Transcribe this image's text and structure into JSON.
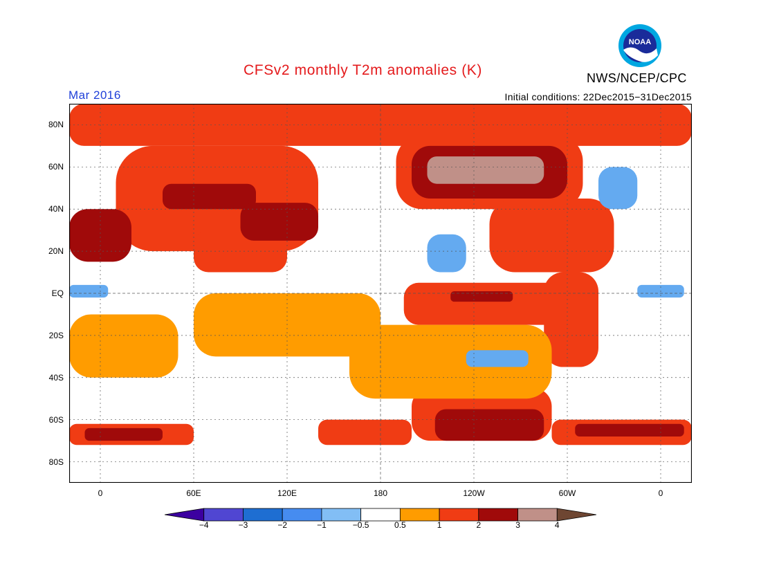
{
  "header": {
    "title": "CFSv2 monthly T2m anomalies (K)",
    "month": "Mar 2016",
    "initial_conditions": "Initial conditions: 22Dec2015−31Dec2015",
    "agency": "NWS/NCEP/CPC",
    "logo_icon": "noaa-logo-icon",
    "logo_text": "NOAA"
  },
  "map": {
    "lon_range": [
      -20,
      380
    ],
    "lat_range": [
      -90,
      90
    ],
    "y_ticks": [
      {
        "label": "80N",
        "lat": 80
      },
      {
        "label": "60N",
        "lat": 60
      },
      {
        "label": "40N",
        "lat": 40
      },
      {
        "label": "20N",
        "lat": 20
      },
      {
        "label": "EQ",
        "lat": 0
      },
      {
        "label": "20S",
        "lat": -20
      },
      {
        "label": "40S",
        "lat": -40
      },
      {
        "label": "60S",
        "lat": -60
      },
      {
        "label": "80S",
        "lat": -80
      }
    ],
    "x_ticks": [
      {
        "label": "0",
        "lon": 0
      },
      {
        "label": "60E",
        "lon": 60
      },
      {
        "label": "120E",
        "lon": 120
      },
      {
        "label": "180",
        "lon": 180
      },
      {
        "label": "120W",
        "lon": 240
      },
      {
        "label": "60W",
        "lon": 300
      },
      {
        "label": "0",
        "lon": 360
      }
    ],
    "grid": true,
    "background_color": "#ffffff",
    "regions": [
      {
        "name": "arctic-warm",
        "color": "#f03c14",
        "cells": [
          [
            -20,
            70,
            400,
            20
          ]
        ]
      },
      {
        "name": "eurasia-warm",
        "color": "#f03c14",
        "cells": [
          [
            10,
            20,
            130,
            50
          ],
          [
            60,
            10,
            60,
            20
          ]
        ]
      },
      {
        "name": "siberia-hot",
        "color": "#a00a0a",
        "cells": [
          [
            40,
            40,
            60,
            12
          ],
          [
            90,
            25,
            50,
            18
          ]
        ]
      },
      {
        "name": "sahara-hot",
        "color": "#a00a0a",
        "cells": [
          [
            -20,
            15,
            40,
            25
          ]
        ]
      },
      {
        "name": "north-america-warm",
        "color": "#f03c14",
        "cells": [
          [
            190,
            40,
            120,
            35
          ],
          [
            250,
            10,
            80,
            35
          ]
        ]
      },
      {
        "name": "canada-hot",
        "color": "#a00a0a",
        "cells": [
          [
            200,
            45,
            100,
            25
          ]
        ]
      },
      {
        "name": "canada-extreme",
        "color": "#c09088",
        "cells": [
          [
            210,
            52,
            75,
            13
          ]
        ]
      },
      {
        "name": "pacific-warm",
        "color": "#f03c14",
        "cells": [
          [
            195,
            -15,
            110,
            20
          ]
        ]
      },
      {
        "name": "equatorial-pacific-hot",
        "color": "#a00a0a",
        "cells": [
          [
            225,
            -4,
            40,
            5
          ]
        ]
      },
      {
        "name": "south-america-warm",
        "color": "#f03c14",
        "cells": [
          [
            285,
            -35,
            35,
            45
          ]
        ]
      },
      {
        "name": "southern-ocean-warm",
        "color": "#f03c14",
        "cells": [
          [
            200,
            -70,
            90,
            25
          ],
          [
            -20,
            -72,
            80,
            10
          ],
          [
            290,
            -72,
            90,
            12
          ],
          [
            140,
            -72,
            60,
            12
          ]
        ]
      },
      {
        "name": "southern-ocean-hot",
        "color": "#a00a0a",
        "cells": [
          [
            215,
            -70,
            70,
            15
          ],
          [
            -10,
            -70,
            50,
            6
          ],
          [
            305,
            -68,
            70,
            6
          ]
        ]
      },
      {
        "name": "tropics-mild",
        "color": "#ff9c00",
        "cells": [
          [
            60,
            -30,
            120,
            30
          ],
          [
            -20,
            -40,
            70,
            30
          ],
          [
            160,
            -50,
            130,
            35
          ]
        ]
      },
      {
        "name": "pacific-cool",
        "color": "#64aaf0",
        "cells": [
          [
            210,
            10,
            25,
            18
          ],
          [
            235,
            -35,
            40,
            8
          ],
          [
            320,
            40,
            25,
            20
          ]
        ]
      },
      {
        "name": "atlantic-cool",
        "color": "#64aaf0",
        "cells": [
          [
            -20,
            -2,
            25,
            6
          ],
          [
            345,
            -2,
            30,
            6
          ]
        ]
      }
    ]
  },
  "colorbar": {
    "colors": [
      "#3c00a0",
      "#5046d2",
      "#1e6ed2",
      "#468cf0",
      "#82bef5",
      "#ffffff",
      "#ff9c00",
      "#f03c14",
      "#a00a0a",
      "#c09088",
      "#6e4632"
    ],
    "labels": [
      "−4",
      "−3",
      "−2",
      "−1",
      "−0.5",
      "0.5",
      "1",
      "2",
      "3",
      "4"
    ]
  }
}
